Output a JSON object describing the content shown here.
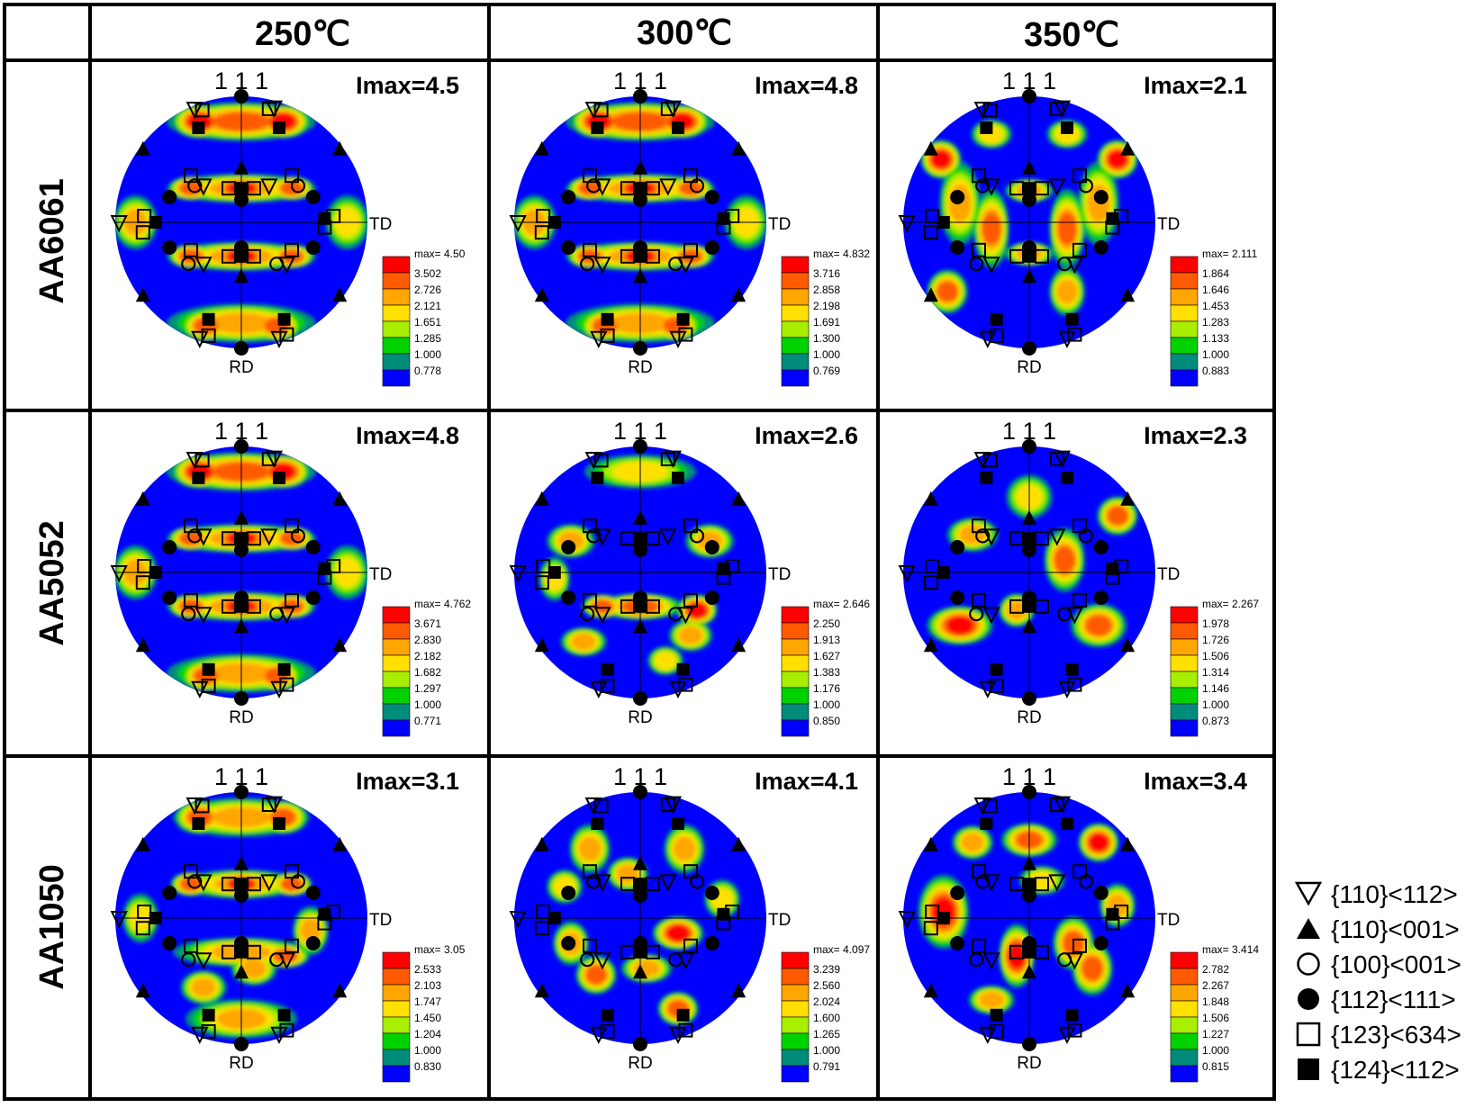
{
  "columns": [
    "250℃",
    "300℃",
    "350℃"
  ],
  "rows": [
    "AA6061",
    "AA5052",
    "AA1050"
  ],
  "pole_label": "1 1 1",
  "rd_label": "RD",
  "td_label": "TD",
  "palette": [
    "#0000ff",
    "#008c7a",
    "#00d200",
    "#a8ee00",
    "#ffe000",
    "#ffa600",
    "#ff5a00",
    "#ff0000"
  ],
  "panels": [
    [
      {
        "imax": "Imax=4.5",
        "colorbar": [
          "max= 4.50",
          "3.502",
          "2.726",
          "2.121",
          "1.651",
          "1.285",
          "1.000",
          "0.778"
        ]
      },
      {
        "imax": "Imax=4.8",
        "colorbar": [
          "max= 4.832",
          "3.716",
          "2.858",
          "2.198",
          "1.691",
          "1.300",
          "1.000",
          "0.769"
        ]
      },
      {
        "imax": "Imax=2.1",
        "colorbar": [
          "max= 2.111",
          "1.864",
          "1.646",
          "1.453",
          "1.283",
          "1.133",
          "1.000",
          "0.883"
        ]
      }
    ],
    [
      {
        "imax": "Imax=4.8",
        "colorbar": [
          "max= 4.762",
          "3.671",
          "2.830",
          "2.182",
          "1.682",
          "1.297",
          "1.000",
          "0.771"
        ]
      },
      {
        "imax": "Imax=2.6",
        "colorbar": [
          "max= 2.646",
          "2.250",
          "1.913",
          "1.627",
          "1.383",
          "1.176",
          "1.000",
          "0.850"
        ]
      },
      {
        "imax": "Imax=2.3",
        "colorbar": [
          "max= 2.267",
          "1.978",
          "1.726",
          "1.506",
          "1.314",
          "1.146",
          "1.000",
          "0.873"
        ]
      }
    ],
    [
      {
        "imax": "Imax=3.1",
        "colorbar": [
          "max= 3.05",
          "2.533",
          "2.103",
          "1.747",
          "1.450",
          "1.204",
          "1.000",
          "0.830"
        ]
      },
      {
        "imax": "Imax=4.1",
        "colorbar": [
          "max= 4.097",
          "3.239",
          "2.560",
          "2.024",
          "1.600",
          "1.265",
          "1.000",
          "0.791"
        ]
      },
      {
        "imax": "Imax=3.4",
        "colorbar": [
          "max= 3.414",
          "2.782",
          "2.267",
          "1.848",
          "1.506",
          "1.227",
          "1.000",
          "0.815"
        ]
      }
    ]
  ],
  "legend": [
    {
      "symbol": "triangle-down-open",
      "label": "{110}<112>"
    },
    {
      "symbol": "triangle-up-filled",
      "label": "{110}<001>"
    },
    {
      "symbol": "circle-open",
      "label": "{100}<001>"
    },
    {
      "symbol": "circle-filled",
      "label": "{112}<111>"
    },
    {
      "symbol": "square-open",
      "label": "{123}<634>"
    },
    {
      "symbol": "square-filled",
      "label": "{124}<112>"
    }
  ]
}
